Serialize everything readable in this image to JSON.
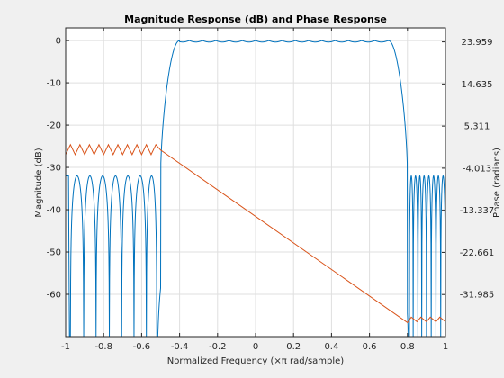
{
  "chart_data": {
    "type": "line",
    "title": "Magnitude Response (dB) and Phase Response",
    "xlabel": "Normalized Frequency (×π rad/sample)",
    "ylabel_left": "Magnitude (dB)",
    "ylabel_right": "Phase (radians)",
    "xlim": [
      -1,
      1
    ],
    "ylim_left": [
      -70,
      3
    ],
    "ylim_right": [
      -41.309,
      27.067
    ],
    "x_ticks": [
      -1,
      -0.8,
      -0.6,
      -0.4,
      -0.2,
      0,
      0.2,
      0.4,
      0.6,
      0.8,
      1
    ],
    "x_tick_labels": [
      "-1",
      "-0.8",
      "-0.6",
      "-0.4",
      "-0.2",
      "0",
      "0.2",
      "0.4",
      "0.6",
      "0.8",
      "1"
    ],
    "y_ticks_left": [
      0,
      -10,
      -20,
      -30,
      -40,
      -50,
      -60
    ],
    "y_tick_labels_left": [
      "0",
      "-10",
      "-20",
      "-30",
      "-40",
      "-50",
      "-60"
    ],
    "y_ticks_right": [
      23.959,
      14.635,
      5.311,
      -4.013,
      -13.337,
      -22.661,
      -31.985
    ],
    "y_tick_labels_right": [
      "23.959",
      "14.635",
      "5.311",
      "-4.013",
      "-13.337",
      "-22.661",
      "-31.985"
    ],
    "grid": true,
    "series": [
      {
        "axis": "left",
        "color": "#0072bd",
        "passband": [
          -0.4,
          0.7
        ],
        "passband_level": 0,
        "stopband_peak": -32,
        "stopband_left": [
          -1,
          -0.5
        ],
        "stopband_right": [
          0.8,
          1
        ],
        "null_x": [
          -0.975,
          -0.905,
          -0.84,
          -0.77,
          -0.705,
          -0.64,
          -0.575,
          -0.52,
          0.81,
          0.83,
          0.855,
          0.875,
          0.9,
          0.925,
          0.95,
          0.975,
          1.0
        ]
      },
      {
        "axis": "right",
        "color": "#d95319",
        "points": [
          [
            -1,
            -1.0
          ],
          [
            -0.975,
            1.2
          ],
          [
            -0.95,
            -1.0
          ],
          [
            -0.925,
            1.2
          ],
          [
            -0.9,
            -1.0
          ],
          [
            -0.875,
            1.2
          ],
          [
            -0.85,
            -1.0
          ],
          [
            -0.825,
            1.2
          ],
          [
            -0.8,
            -1.0
          ],
          [
            -0.775,
            1.2
          ],
          [
            -0.75,
            -1.0
          ],
          [
            -0.725,
            1.2
          ],
          [
            -0.7,
            -1.0
          ],
          [
            -0.675,
            1.2
          ],
          [
            -0.65,
            -1.0
          ],
          [
            -0.625,
            1.2
          ],
          [
            -0.6,
            -1.0
          ],
          [
            -0.575,
            1.2
          ],
          [
            -0.55,
            -1.0
          ],
          [
            -0.525,
            1.2
          ],
          [
            -0.5,
            0.0
          ],
          [
            0.8,
            -38.2
          ],
          [
            0.82,
            -37.0
          ],
          [
            0.85,
            -38.0
          ],
          [
            0.87,
            -37.0
          ],
          [
            0.9,
            -38.0
          ],
          [
            0.92,
            -37.0
          ],
          [
            0.95,
            -38.0
          ],
          [
            0.97,
            -37.0
          ],
          [
            1.0,
            -38.0
          ]
        ]
      }
    ]
  }
}
